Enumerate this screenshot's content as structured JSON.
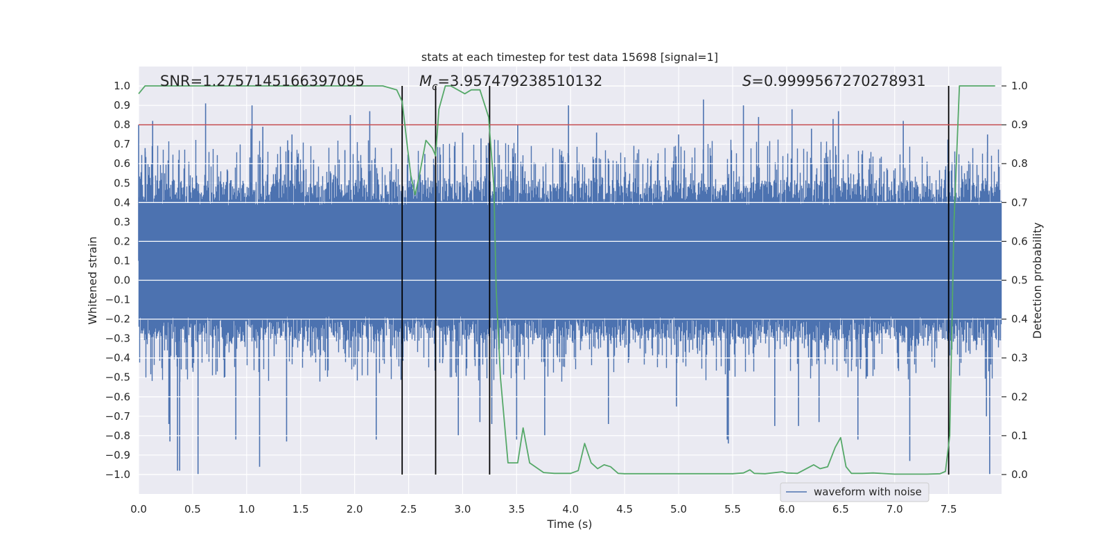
{
  "chart_data": {
    "type": "line",
    "title": "stats at each timestep for test data 15698 [signal=1]",
    "xlabel": "Time (s)",
    "ylabel": "Whitened strain",
    "y2label": "Detection probability",
    "xlim": [
      0.0,
      7.99
    ],
    "ylim": [
      -1.1,
      1.1
    ],
    "y2lim": [
      -0.05,
      1.05
    ],
    "x_ticks": [
      0.0,
      0.5,
      1.0,
      1.5,
      2.0,
      2.5,
      3.0,
      3.5,
      4.0,
      4.5,
      5.0,
      5.5,
      6.0,
      6.5,
      7.0,
      7.5
    ],
    "x_tick_labels": [
      "0.0",
      "0.5",
      "1.0",
      "1.5",
      "2.0",
      "2.5",
      "3.0",
      "3.5",
      "4.0",
      "4.5",
      "5.0",
      "5.5",
      "6.0",
      "6.5",
      "7.0",
      "7.5"
    ],
    "y_ticks": [
      1.0,
      0.9,
      0.8,
      0.7,
      0.6,
      0.5,
      0.4,
      0.3,
      0.2,
      0.1,
      0.0,
      -0.1,
      -0.2,
      -0.3,
      -0.4,
      -0.5,
      -0.6,
      -0.7,
      -0.8,
      -0.9,
      -1.0
    ],
    "y_tick_labels": [
      "1.0",
      "0.9",
      "0.8",
      "0.7",
      "0.6",
      "0.5",
      "0.4",
      "0.3",
      "0.2",
      "0.1",
      "0.0",
      "−0.1",
      "−0.2",
      "−0.3",
      "−0.4",
      "−0.5",
      "−0.6",
      "−0.7",
      "−0.8",
      "−0.9",
      "−1.0"
    ],
    "y2_ticks": [
      1.0,
      0.9,
      0.8,
      0.7,
      0.6,
      0.5,
      0.4,
      0.3,
      0.2,
      0.1,
      0.0
    ],
    "y2_tick_labels": [
      "1.0",
      "0.9",
      "0.8",
      "0.7",
      "0.6",
      "0.5",
      "0.4",
      "0.3",
      "0.2",
      "0.1",
      "0.0"
    ],
    "grid": true,
    "legend_position": "lower-right",
    "annotations": {
      "snr": "SNR=1.2757145166397095",
      "mc_symbol": "M",
      "mc_sub": "c",
      "mc_value": "=3.957479238510132",
      "s_symbol": "S",
      "s_value": "=0.9999567270278931"
    },
    "threshold": {
      "value": 0.9,
      "axis": "y2",
      "color": "#c44e52"
    },
    "vlines": [
      2.44,
      2.75,
      3.25,
      7.5
    ],
    "series": [
      {
        "name": "waveform with noise",
        "axis": "y",
        "color": "#4c72b0",
        "kind": "noise",
        "sample_rate": 2048,
        "duration_s": 7.99,
        "typical_extent": [
          -0.42,
          0.62
        ],
        "seed": 15698,
        "peaks_max": [
          [
            0.0,
            0.8
          ],
          [
            0.06,
            0.68
          ],
          [
            0.13,
            0.82
          ],
          [
            0.37,
            0.62
          ],
          [
            0.62,
            0.91
          ],
          [
            0.82,
            0.57
          ],
          [
            1.03,
            0.6
          ],
          [
            1.04,
            0.78
          ],
          [
            1.05,
            0.9
          ],
          [
            1.15,
            0.79
          ],
          [
            1.38,
            0.72
          ],
          [
            1.42,
            0.75
          ],
          [
            1.62,
            0.62
          ],
          [
            1.91,
            0.67
          ],
          [
            1.96,
            0.85
          ],
          [
            2.14,
            0.87
          ],
          [
            2.34,
            0.68
          ],
          [
            2.65,
            0.65
          ],
          [
            2.88,
            0.63
          ],
          [
            3.0,
            0.76
          ],
          [
            3.17,
            0.73
          ],
          [
            3.51,
            0.8
          ],
          [
            3.98,
            0.9
          ],
          [
            4.24,
            0.76
          ],
          [
            4.44,
            0.6
          ],
          [
            5.0,
            0.75
          ],
          [
            5.23,
            0.93
          ],
          [
            5.6,
            0.9
          ],
          [
            5.74,
            0.84
          ],
          [
            6.05,
            0.88
          ],
          [
            6.23,
            0.78
          ],
          [
            6.43,
            0.83
          ],
          [
            6.48,
            0.87
          ],
          [
            7.08,
            0.82
          ],
          [
            7.86,
            0.75
          ]
        ],
        "peaks_min": [
          [
            0.36,
            -0.98
          ],
          [
            0.38,
            -0.98
          ],
          [
            0.55,
            -1.0
          ],
          [
            0.28,
            -0.74
          ],
          [
            0.29,
            -0.83
          ],
          [
            0.9,
            -0.82
          ],
          [
            1.12,
            -0.96
          ],
          [
            1.37,
            -0.83
          ],
          [
            2.2,
            -0.82
          ],
          [
            2.96,
            -0.8
          ],
          [
            3.16,
            -0.73
          ],
          [
            3.27,
            -0.74
          ],
          [
            3.5,
            -0.82
          ],
          [
            3.76,
            -0.8
          ],
          [
            4.35,
            -0.74
          ],
          [
            5.45,
            -0.82
          ],
          [
            5.46,
            -0.84
          ],
          [
            5.89,
            -0.75
          ],
          [
            6.11,
            -0.75
          ],
          [
            6.3,
            -0.73
          ],
          [
            6.66,
            -0.82
          ],
          [
            7.14,
            -0.93
          ],
          [
            7.88,
            -1.0
          ],
          [
            4.98,
            -0.65
          ],
          [
            7.85,
            -0.7
          ]
        ]
      },
      {
        "name": "Detection probability",
        "axis": "y2",
        "color": "#55a868",
        "kind": "line",
        "x": [
          0.0,
          0.06,
          0.15,
          0.5,
          1.0,
          1.5,
          2.0,
          2.26,
          2.39,
          2.44,
          2.49,
          2.52,
          2.56,
          2.6,
          2.66,
          2.72,
          2.75,
          2.78,
          2.84,
          2.89,
          3.02,
          3.08,
          3.16,
          3.24,
          3.29,
          3.31,
          3.35,
          3.42,
          3.51,
          3.56,
          3.62,
          3.75,
          3.85,
          4.0,
          4.07,
          4.13,
          4.19,
          4.25,
          4.31,
          4.37,
          4.44,
          4.5,
          4.6,
          5.0,
          5.5,
          5.6,
          5.66,
          5.7,
          5.8,
          5.96,
          6.0,
          6.1,
          6.25,
          6.31,
          6.38,
          6.45,
          6.5,
          6.55,
          6.6,
          6.7,
          6.8,
          7.0,
          7.3,
          7.42,
          7.47,
          7.51,
          7.55,
          7.6,
          7.7,
          7.93
        ],
        "values": [
          0.98,
          1.0,
          1.0,
          1.0,
          1.0,
          1.0,
          1.0,
          1.0,
          0.99,
          0.96,
          0.84,
          0.77,
          0.72,
          0.77,
          0.86,
          0.84,
          0.82,
          0.94,
          1.0,
          1.0,
          0.98,
          0.99,
          0.99,
          0.92,
          0.74,
          0.48,
          0.25,
          0.03,
          0.03,
          0.12,
          0.03,
          0.005,
          0.003,
          0.003,
          0.01,
          0.08,
          0.03,
          0.015,
          0.025,
          0.02,
          0.003,
          0.002,
          0.002,
          0.002,
          0.002,
          0.004,
          0.012,
          0.003,
          0.002,
          0.007,
          0.004,
          0.003,
          0.025,
          0.015,
          0.02,
          0.07,
          0.095,
          0.02,
          0.003,
          0.003,
          0.004,
          0.001,
          0.001,
          0.002,
          0.008,
          0.1,
          0.65,
          1.0,
          1.0,
          1.0
        ]
      }
    ]
  }
}
